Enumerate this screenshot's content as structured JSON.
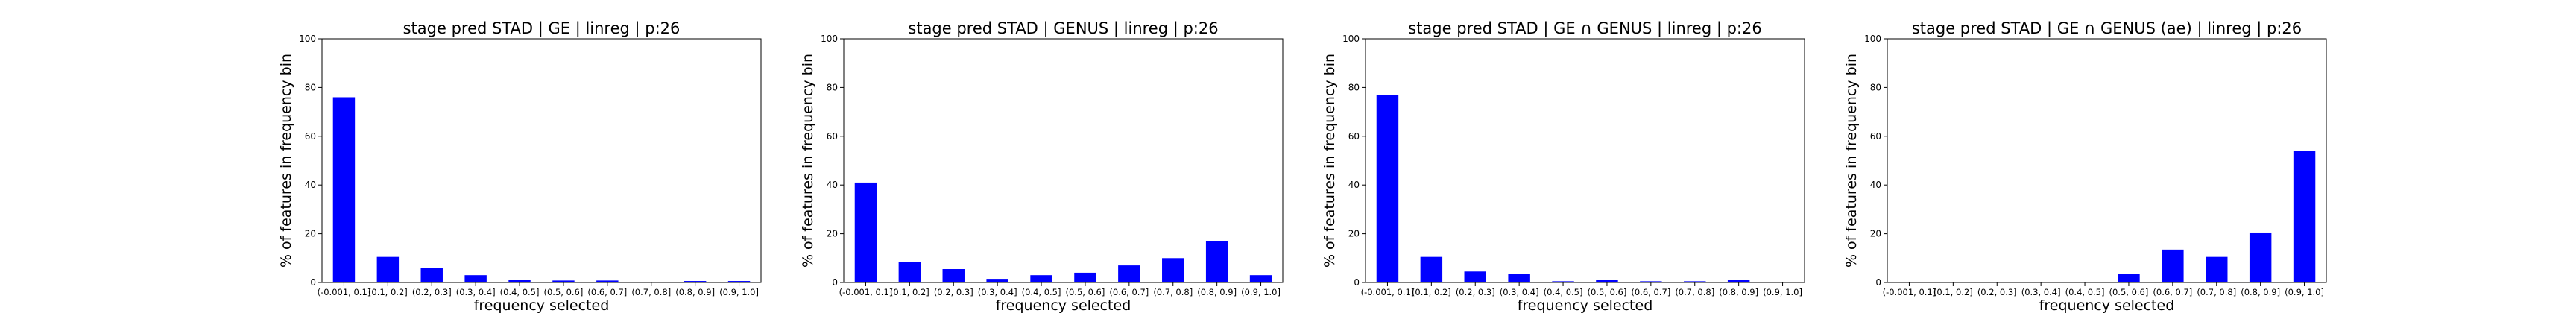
{
  "chart_data": [
    {
      "type": "bar",
      "title": "stage pred STAD | GE | linreg | p:26",
      "xlabel": "frequency selected",
      "ylabel": "% of features in frequency bin",
      "ylim": [
        0,
        100
      ],
      "yticks": [
        0,
        20,
        40,
        60,
        80,
        100
      ],
      "grid": false,
      "bar_color": "#0000ff",
      "categories": [
        "(-0.001, 0.1]",
        "(0.1, 0.2]",
        "(0.2, 0.3]",
        "(0.3, 0.4]",
        "(0.4, 0.5]",
        "(0.5, 0.6]",
        "(0.6, 0.7]",
        "(0.7, 0.8]",
        "(0.8, 0.9]",
        "(0.9, 1.0]"
      ],
      "values": [
        76,
        10.5,
        6,
        3,
        1.2,
        0.8,
        0.8,
        0.3,
        0.6,
        0.6
      ]
    },
    {
      "type": "bar",
      "title": "stage pred STAD | GENUS | linreg | p:26",
      "xlabel": "frequency selected",
      "ylabel": "% of features in frequency bin",
      "ylim": [
        0,
        100
      ],
      "yticks": [
        0,
        20,
        40,
        60,
        80,
        100
      ],
      "grid": false,
      "bar_color": "#0000ff",
      "categories": [
        "(-0.001, 0.1]",
        "(0.1, 0.2]",
        "(0.2, 0.3]",
        "(0.3, 0.4]",
        "(0.4, 0.5]",
        "(0.5, 0.6]",
        "(0.6, 0.7]",
        "(0.7, 0.8]",
        "(0.8, 0.9]",
        "(0.9, 1.0]"
      ],
      "values": [
        41,
        8.5,
        5.5,
        1.5,
        3,
        4,
        7,
        10,
        17,
        3
      ]
    },
    {
      "type": "bar",
      "title": "stage pred STAD | GE ∩ GENUS | linreg | p:26",
      "xlabel": "frequency selected",
      "ylabel": "% of features in frequency bin",
      "ylim": [
        0,
        100
      ],
      "yticks": [
        0,
        20,
        40,
        60,
        80,
        100
      ],
      "grid": false,
      "bar_color": "#0000ff",
      "categories": [
        "(-0.001, 0.1]",
        "(0.1, 0.2]",
        "(0.2, 0.3]",
        "(0.3, 0.4]",
        "(0.4, 0.5]",
        "(0.5, 0.6]",
        "(0.6, 0.7]",
        "(0.7, 0.8]",
        "(0.8, 0.9]",
        "(0.9, 1.0]"
      ],
      "values": [
        77,
        10.5,
        4.5,
        3.5,
        0.5,
        1.2,
        0.5,
        0.5,
        1.2,
        0.3
      ]
    },
    {
      "type": "bar",
      "title": "stage pred STAD | GE ∩ GENUS (ae) | linreg | p:26",
      "xlabel": "frequency selected",
      "ylabel": "% of features in frequency bin",
      "ylim": [
        0,
        100
      ],
      "yticks": [
        0,
        20,
        40,
        60,
        80,
        100
      ],
      "grid": false,
      "bar_color": "#0000ff",
      "categories": [
        "(-0.001, 0.1]",
        "(0.1, 0.2]",
        "(0.2, 0.3]",
        "(0.3, 0.4]",
        "(0.4, 0.5]",
        "(0.5, 0.6]",
        "(0.6, 0.7]",
        "(0.7, 0.8]",
        "(0.8, 0.9]",
        "(0.9, 1.0]"
      ],
      "values": [
        0,
        0,
        0,
        0,
        0,
        3.5,
        13.5,
        10.5,
        20.5,
        54
      ]
    }
  ]
}
